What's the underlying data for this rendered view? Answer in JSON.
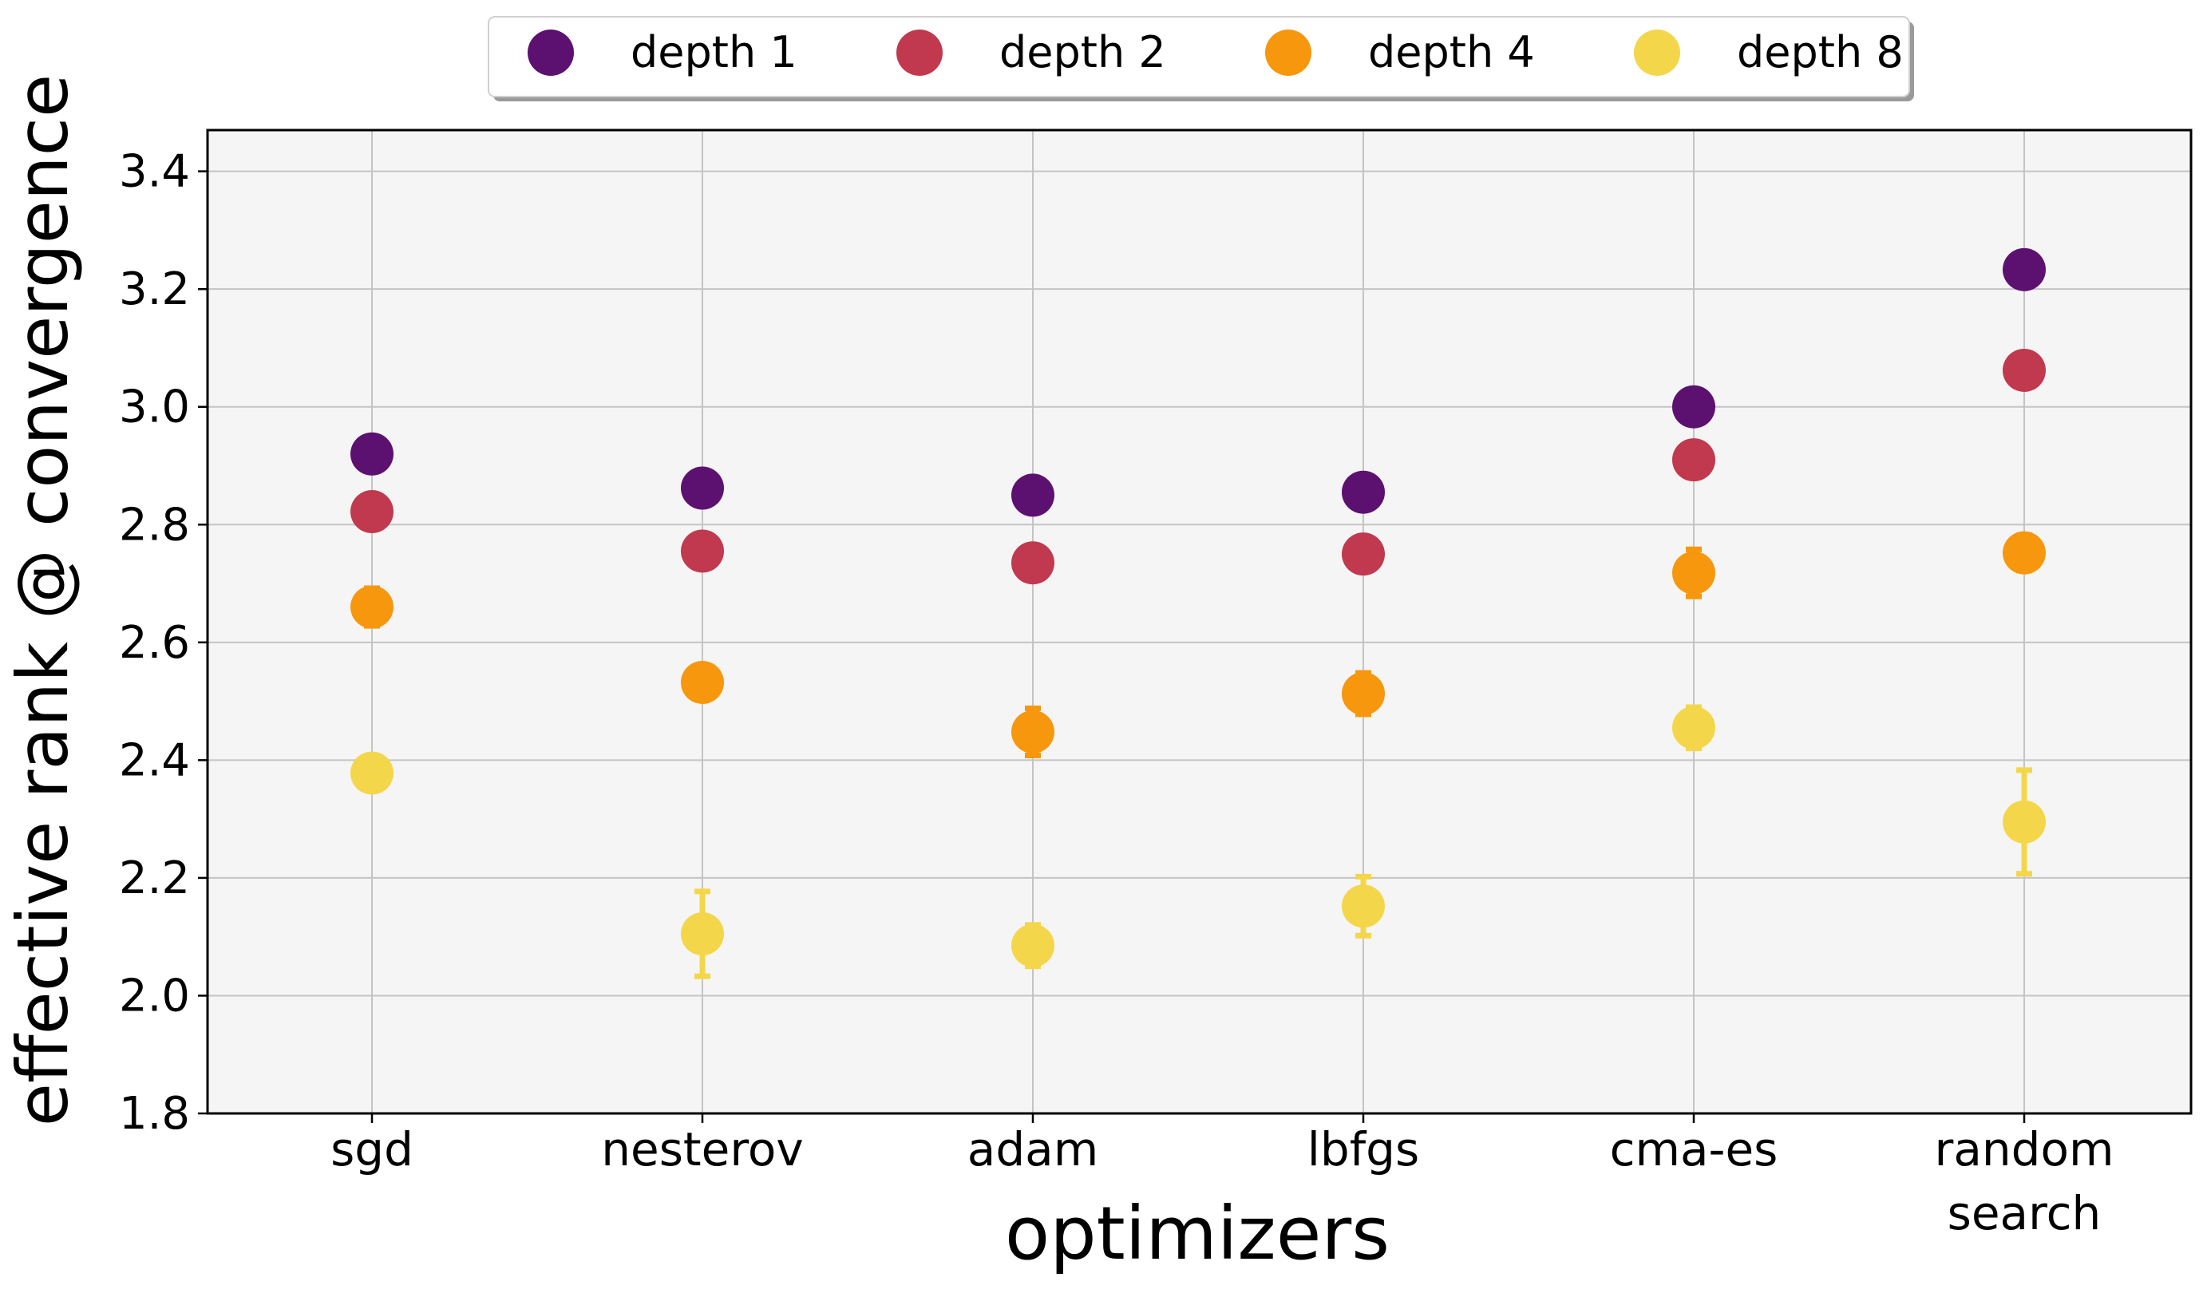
{
  "chart_data": {
    "type": "scatter",
    "xlabel": "optimizers",
    "ylabel": "effective rank @ convergence",
    "categories": [
      [
        "sgd"
      ],
      [
        "nesterov"
      ],
      [
        "adam"
      ],
      [
        "lbfgs"
      ],
      [
        "cma-es"
      ],
      [
        "random",
        "search"
      ]
    ],
    "ylim": [
      1.8,
      3.47
    ],
    "yticks": [
      "1.8",
      "2.0",
      "2.2",
      "2.4",
      "2.6",
      "2.8",
      "3.0",
      "3.2",
      "3.4"
    ],
    "grid": true,
    "legend_position": "top-center",
    "background_color": "#f5f5f5",
    "series": [
      {
        "name": "depth 1",
        "color": "#5c1170",
        "values": [
          2.92,
          2.862,
          2.85,
          2.855,
          3.0,
          3.233
        ],
        "errors": [
          0.0,
          0.0,
          0.0,
          0.0,
          0.0,
          0.0
        ]
      },
      {
        "name": "depth 2",
        "color": "#c0394e",
        "values": [
          2.822,
          2.755,
          2.735,
          2.75,
          2.91,
          3.062
        ],
        "errors": [
          0.0,
          0.0,
          0.0,
          0.0,
          0.0,
          0.0
        ]
      },
      {
        "name": "depth 4",
        "color": "#f7970d",
        "values": [
          2.66,
          2.532,
          2.448,
          2.513,
          2.718,
          2.752
        ],
        "errors": [
          0.032,
          0.025,
          0.04,
          0.035,
          0.04,
          0.03
        ]
      },
      {
        "name": "depth 8",
        "color": "#f4d64a",
        "values": [
          2.378,
          2.105,
          2.085,
          2.152,
          2.455,
          2.295
        ],
        "errors": [
          0.0,
          0.072,
          0.035,
          0.05,
          0.035,
          0.088
        ]
      }
    ]
  }
}
